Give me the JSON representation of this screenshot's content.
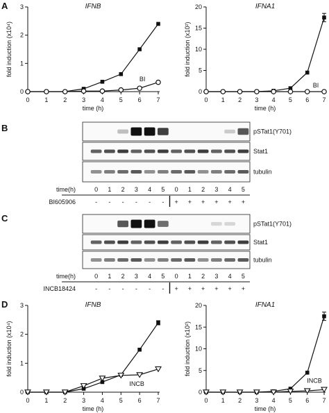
{
  "panels": {
    "A": "A",
    "B": "B",
    "C": "C",
    "D": "D"
  },
  "chart_data": [
    {
      "type": "line",
      "panel": "A",
      "title": "IFNB",
      "xlabel": "time (h)",
      "ylabel": "fold induction (x10⁴)",
      "xlim": [
        0,
        7
      ],
      "ylim": [
        0,
        3
      ],
      "xticks": [
        0,
        1,
        2,
        3,
        4,
        5,
        6,
        7
      ],
      "yticks": [
        0,
        1,
        2,
        3
      ],
      "series": [
        {
          "marker": "filled-square",
          "x": [
            0,
            1,
            2,
            3,
            4,
            5,
            6,
            7
          ],
          "y": [
            0,
            0,
            0,
            0.1,
            0.35,
            0.62,
            1.5,
            2.4
          ]
        },
        {
          "name": "BI",
          "marker": "open-circle",
          "x": [
            0,
            1,
            2,
            3,
            4,
            5,
            6,
            7
          ],
          "y": [
            0,
            0,
            0,
            0.02,
            0.02,
            0.06,
            0.12,
            0.33
          ]
        }
      ]
    },
    {
      "type": "line",
      "panel": "A",
      "title": "IFNA1",
      "xlabel": "time (h)",
      "ylabel": "fold induction (x10²)",
      "xlim": [
        0,
        7
      ],
      "ylim": [
        0,
        20
      ],
      "xticks": [
        0,
        1,
        2,
        3,
        4,
        5,
        6,
        7
      ],
      "yticks": [
        0,
        5,
        10,
        15,
        20
      ],
      "series": [
        {
          "marker": "filled-square",
          "x": [
            0,
            1,
            2,
            3,
            4,
            5,
            6,
            7
          ],
          "y": [
            0,
            0,
            0,
            0,
            0.2,
            0.8,
            4.5,
            17.5
          ]
        },
        {
          "name": "BI",
          "marker": "open-circle",
          "x": [
            0,
            1,
            2,
            3,
            4,
            5,
            6,
            7
          ],
          "y": [
            0,
            0,
            0,
            0,
            0,
            0,
            0,
            0
          ]
        }
      ]
    },
    {
      "type": "line",
      "panel": "D",
      "title": "IFNB",
      "xlabel": "time (h)",
      "ylabel": "fold induction (x10⁴)",
      "xlim": [
        0,
        7
      ],
      "ylim": [
        0,
        3
      ],
      "xticks": [
        0,
        1,
        2,
        3,
        4,
        5,
        6,
        7
      ],
      "yticks": [
        0,
        1,
        2,
        3
      ],
      "series": [
        {
          "marker": "filled-square",
          "x": [
            0,
            1,
            2,
            3,
            4,
            5,
            6,
            7
          ],
          "y": [
            0,
            0,
            0,
            0.12,
            0.35,
            0.6,
            1.47,
            2.4
          ]
        },
        {
          "name": "INCB",
          "marker": "open-triangle",
          "x": [
            0,
            1,
            2,
            3,
            4,
            5,
            6,
            7
          ],
          "y": [
            0,
            0,
            0,
            0.22,
            0.48,
            0.58,
            0.6,
            0.8
          ]
        }
      ]
    },
    {
      "type": "line",
      "panel": "D",
      "title": "IFNA1",
      "xlabel": "time (h)",
      "ylabel": "fold induction (x10²)",
      "xlim": [
        0,
        7
      ],
      "ylim": [
        0,
        20
      ],
      "xticks": [
        0,
        1,
        2,
        3,
        4,
        5,
        6,
        7
      ],
      "yticks": [
        0,
        5,
        10,
        15,
        20
      ],
      "series": [
        {
          "marker": "filled-square",
          "x": [
            0,
            1,
            2,
            3,
            4,
            5,
            6,
            7
          ],
          "y": [
            0,
            0,
            0,
            0,
            0.2,
            0.8,
            4.5,
            17.5
          ]
        },
        {
          "name": "INCB",
          "marker": "open-triangle",
          "x": [
            0,
            1,
            2,
            3,
            4,
            5,
            6,
            7
          ],
          "y": [
            0,
            0,
            0,
            0,
            0,
            0.2,
            0.3,
            0.6
          ]
        }
      ]
    }
  ],
  "blots": [
    {
      "panel": "B",
      "rows": [
        "pSTat1(Y701)",
        "Stat1",
        "tubulin"
      ],
      "time_label": "time(h)",
      "times": [
        "0",
        "1",
        "2",
        "3",
        "4",
        "5",
        "0",
        "1",
        "2",
        "3",
        "4",
        "5"
      ],
      "treatment_label": "BI605906",
      "treatment": [
        "-",
        "-",
        "-",
        "-",
        "-",
        "-",
        "+",
        "+",
        "+",
        "+",
        "+",
        "+"
      ],
      "pstat_intensity": [
        0,
        0,
        0.25,
        1,
        1,
        0.8,
        0,
        0,
        0,
        0,
        0.2,
        0.7
      ]
    },
    {
      "panel": "C",
      "rows": [
        "pSTat1(Y701)",
        "Stat1",
        "tubulin"
      ],
      "time_label": "time(h)",
      "times": [
        "0",
        "1",
        "2",
        "3",
        "4",
        "5",
        "0",
        "1",
        "2",
        "3",
        "4",
        "5"
      ],
      "treatment_label": "INCB18424",
      "treatment": [
        "-",
        "-",
        "-",
        "-",
        "-",
        "-",
        "+",
        "+",
        "+",
        "+",
        "+",
        "+"
      ],
      "pstat_intensity": [
        0,
        0,
        0.7,
        1,
        1,
        0.6,
        0,
        0,
        0,
        0.15,
        0.15,
        0
      ]
    }
  ]
}
